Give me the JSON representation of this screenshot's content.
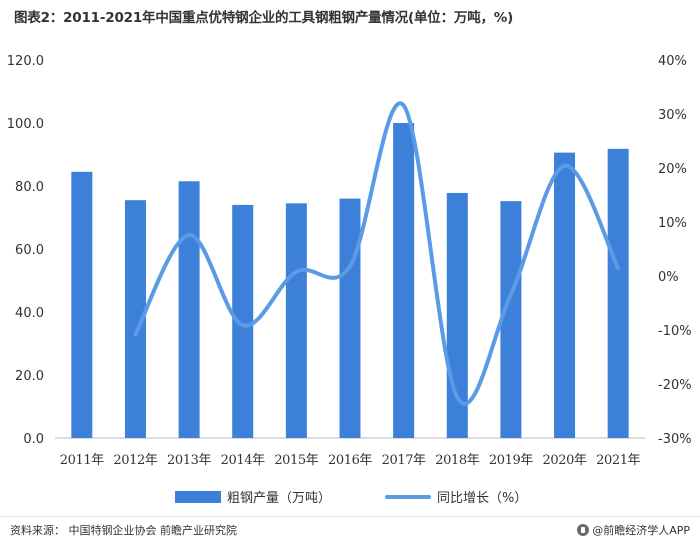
{
  "chart_data": {
    "type": "bar",
    "title": "图表2：2011-2021年中国重点优特钢企业的工具钢粗钢产量情况(单位：万吨，%)",
    "categories": [
      "2011年",
      "2012年",
      "2013年",
      "2014年",
      "2015年",
      "2016年",
      "2017年",
      "2018年",
      "2019年",
      "2020年",
      "2021年"
    ],
    "series": [
      {
        "name": "粗钢产量（万吨）",
        "type": "bar",
        "axis": "left",
        "color": "#3C80DA",
        "values": [
          84.5,
          75.5,
          81.5,
          74.0,
          74.5,
          76.0,
          100.0,
          77.8,
          75.2,
          90.6,
          91.8
        ]
      },
      {
        "name": "同比增长（%）",
        "type": "line",
        "axis": "right",
        "color": "#5B9BE6",
        "values": [
          null,
          -10.8,
          7.6,
          -9.1,
          0.8,
          1.8,
          31.6,
          -22.5,
          -3.4,
          20.4,
          1.4
        ]
      }
    ],
    "y_left": {
      "ylim": [
        0,
        120
      ],
      "ticks": [
        "0.0",
        "20.0",
        "40.0",
        "60.0",
        "80.0",
        "100.0",
        "120.0"
      ]
    },
    "y_right": {
      "ylim": [
        -30,
        40
      ],
      "ticks": [
        "-30%",
        "-20%",
        "-10%",
        "0%",
        "10%",
        "20%",
        "30%",
        "40%"
      ]
    },
    "grid": false,
    "legend_position": "bottom"
  },
  "source": "资料来源：  中国特钢企业协会 前瞻产业研究院",
  "brand": "@前瞻经济学人APP"
}
